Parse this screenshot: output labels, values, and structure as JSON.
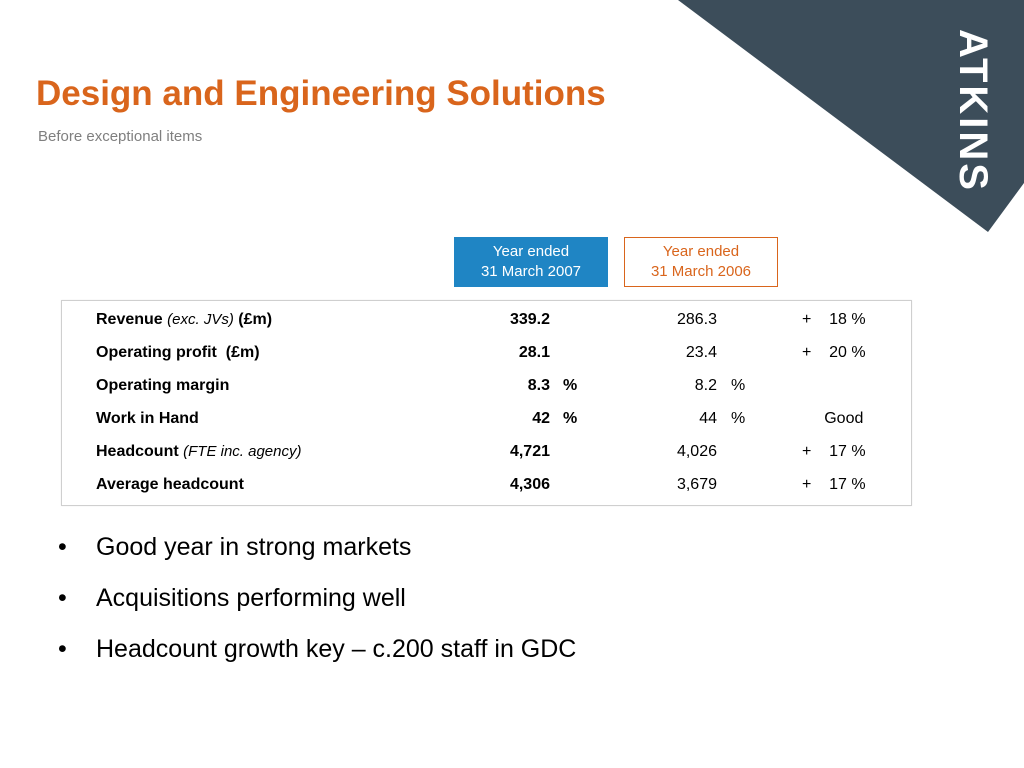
{
  "brand": {
    "logo_text": "ATKINS",
    "panel_color": "#3c4d5a"
  },
  "slide": {
    "title": "Design and Engineering Solutions",
    "subtitle": "Before exceptional items"
  },
  "colors": {
    "title": "#d9651c",
    "header_2007_bg": "#1f85c4",
    "header_2006_border": "#d9651c"
  },
  "columns": {
    "y2007": {
      "line1": "Year ended",
      "line2": "31 March 2007"
    },
    "y2006": {
      "line1": "Year ended",
      "line2": "31 March 2006"
    }
  },
  "rows": [
    {
      "label": "Revenue",
      "label_note": "(exc. JVs)",
      "label_suffix": "(£m)",
      "v2007": "339.2",
      "u2007": "",
      "v2006": "286.3",
      "u2006": "",
      "change": "+    18 %"
    },
    {
      "label": "Operating profit  (£m)",
      "label_note": "",
      "label_suffix": "",
      "v2007": "28.1",
      "u2007": "",
      "v2006": "23.4",
      "u2006": "",
      "change": "+    20 %"
    },
    {
      "label": "Operating margin",
      "label_note": "",
      "label_suffix": "",
      "v2007": "8.3",
      "u2007": "%",
      "v2006": "8.2",
      "u2006": "%",
      "change": ""
    },
    {
      "label": "Work in Hand",
      "label_note": "",
      "label_suffix": "",
      "v2007": "42",
      "u2007": "%",
      "v2006": "44",
      "u2006": "%",
      "change": "     Good"
    },
    {
      "label": "Headcount",
      "label_note": "(FTE inc. agency)",
      "label_suffix": "",
      "v2007": "4,721",
      "u2007": "",
      "v2006": "4,026",
      "u2006": "",
      "change": "+    17 %"
    },
    {
      "label": "Average headcount",
      "label_note": "",
      "label_suffix": "",
      "v2007": "4,306",
      "u2007": "",
      "v2006": "3,679",
      "u2006": "",
      "change": "+    17 %"
    }
  ],
  "bullets": [
    {
      "marker": "•",
      "text": "Good year in strong markets"
    },
    {
      "marker": "•",
      "text": "Acquisitions performing well"
    },
    {
      "marker": "•",
      "text": "Headcount growth key – c.200 staff in GDC"
    }
  ]
}
